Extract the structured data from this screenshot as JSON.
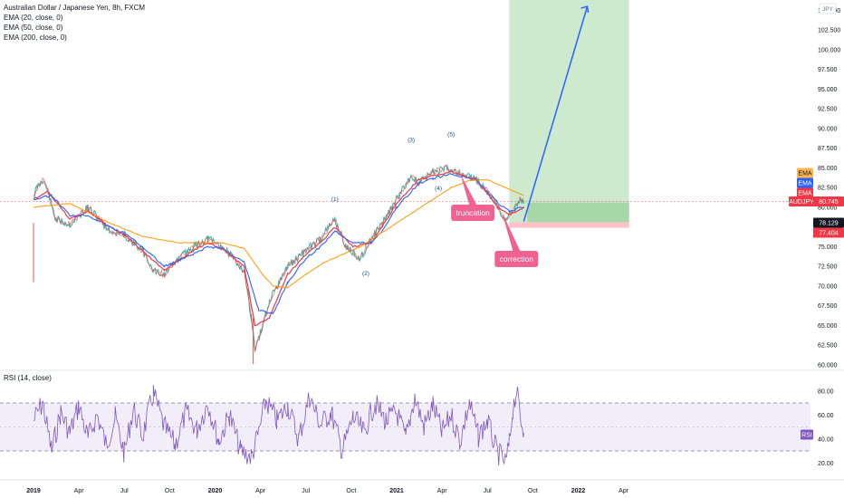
{
  "header": {
    "symbol_title": "Australian Dollar / Japanese Yen, 8h, FXCM",
    "indicators": [
      "EMA (20, close, 0)",
      "EMA (50, close, 0)",
      "EMA (200, close, 0)"
    ]
  },
  "rsi_title": "RSI (14, close)",
  "currency_label": "JPY",
  "chart_data": [
    {
      "type": "line",
      "title": "Australian Dollar / Japanese Yen, 8h, FXCM",
      "x_ticks": [
        "2019",
        "Apr",
        "Jul",
        "Oct",
        "2020",
        "Apr",
        "Jul",
        "Oct",
        "2021",
        "Apr",
        "Jul",
        "Oct",
        "2022",
        "Apr"
      ],
      "y_ticks": [
        "105.000",
        "102.500",
        "100.000",
        "97.500",
        "95.000",
        "92.500",
        "90.000",
        "87.500",
        "85.000",
        "82.500",
        "80.000",
        "77.500",
        "75.000",
        "72.500",
        "70.000",
        "67.500",
        "65.000",
        "62.500",
        "60.000"
      ],
      "ylim": [
        60,
        106
      ],
      "series": [
        {
          "name": "AUDJPY",
          "color": "#26a69a",
          "x": [
            2019.0,
            2019.02,
            2019.05,
            2019.08,
            2019.12,
            2019.2,
            2019.3,
            2019.42,
            2019.5,
            2019.6,
            2019.66,
            2019.72,
            2019.8,
            2019.88,
            2019.96,
            2020.04,
            2020.1,
            2020.16,
            2020.2,
            2020.22,
            2020.25,
            2020.28,
            2020.32,
            2020.4,
            2020.5,
            2020.58,
            2020.66,
            2020.72,
            2020.8,
            2020.86,
            2020.92,
            2021.0,
            2021.08,
            2021.12,
            2021.2,
            2021.28,
            2021.36,
            2021.44,
            2021.5,
            2021.56,
            2021.6,
            2021.64,
            2021.68,
            2021.7
          ],
          "values": [
            81.5,
            82.5,
            83.5,
            82,
            78.5,
            77.8,
            80,
            77,
            76.5,
            74.5,
            72,
            71.5,
            73.5,
            75,
            76,
            75,
            73.5,
            72,
            66,
            62,
            64,
            66.5,
            69,
            72.5,
            74.5,
            76,
            78.5,
            75,
            73.5,
            76,
            78,
            81,
            84,
            83,
            84.5,
            85,
            84.3,
            83.5,
            82,
            80,
            78.3,
            79.5,
            81,
            80.7
          ]
        },
        {
          "name": "EMA 20",
          "color": "#f23645",
          "x": [
            2019.0,
            2019.08,
            2019.2,
            2019.3,
            2019.42,
            2019.5,
            2019.6,
            2019.72,
            2019.88,
            2019.96,
            2020.04,
            2020.16,
            2020.22,
            2020.3,
            2020.4,
            2020.5,
            2020.58,
            2020.66,
            2020.76,
            2020.86,
            2020.92,
            2021.0,
            2021.12,
            2021.2,
            2021.3,
            2021.44,
            2021.56,
            2021.62,
            2021.7
          ],
          "values": [
            81,
            82,
            78.5,
            79.5,
            77.5,
            76.5,
            74.5,
            72,
            74.5,
            75.5,
            74.7,
            72.5,
            65,
            66,
            71.5,
            74,
            75.5,
            77.5,
            75,
            75.5,
            77.5,
            80.5,
            83.5,
            84,
            84.5,
            83.5,
            80,
            79,
            80
          ]
        },
        {
          "name": "EMA 50",
          "color": "#2962ff",
          "x": [
            2019.0,
            2019.1,
            2019.2,
            2019.3,
            2019.42,
            2019.5,
            2019.6,
            2019.72,
            2019.88,
            2019.96,
            2020.04,
            2020.16,
            2020.24,
            2020.32,
            2020.4,
            2020.5,
            2020.58,
            2020.66,
            2020.76,
            2020.86,
            2020.92,
            2021.0,
            2021.12,
            2021.2,
            2021.3,
            2021.44,
            2021.56,
            2021.62,
            2021.7
          ],
          "values": [
            81,
            81.5,
            79,
            79,
            77.5,
            76.7,
            75,
            72.5,
            74,
            75,
            74.8,
            73,
            67,
            66.5,
            70.5,
            73.5,
            75,
            77,
            75.5,
            75.5,
            77,
            80,
            83,
            83.7,
            84.2,
            83.5,
            80.5,
            79.5,
            80
          ]
        },
        {
          "name": "EMA 200",
          "color": "#ff9800",
          "x": [
            2019.0,
            2019.2,
            2019.42,
            2019.6,
            2019.8,
            2020.04,
            2020.16,
            2020.26,
            2020.32,
            2020.4,
            2020.5,
            2020.6,
            2020.7,
            2020.8,
            2020.9,
            2021.0,
            2021.1,
            2021.2,
            2021.3,
            2021.4,
            2021.5,
            2021.6,
            2021.7
          ],
          "values": [
            80,
            80.5,
            78,
            76.3,
            75.5,
            75.5,
            74.8,
            71.5,
            70,
            69.8,
            71.5,
            73,
            74,
            75,
            76.5,
            78,
            79.5,
            81,
            82.5,
            83.4,
            83.5,
            82.5,
            81.5
          ]
        }
      ],
      "labels": {
        "last_price": "80.745",
        "last_symbol": "AUDJPY",
        "ema_tags": [
          "EMA",
          "EMA",
          "EMA"
        ],
        "target_level": "78.129",
        "stop_level": "77.404",
        "wave_labels": [
          {
            "text": "(1)",
            "x": 2020.66,
            "y": 80.8
          },
          {
            "text": "(2)",
            "x": 2020.83,
            "y": 71.4
          },
          {
            "text": "(3)",
            "x": 2021.08,
            "y": 88.3
          },
          {
            "text": "(4)",
            "x": 2021.23,
            "y": 82.2
          },
          {
            "text": "(5)",
            "x": 2021.3,
            "y": 89.0
          }
        ],
        "callouts": [
          {
            "text": "truncation",
            "x": 2021.31,
            "y": 83.8
          },
          {
            "text": "correction",
            "x": 2021.6,
            "y": 78.4
          }
        ]
      },
      "position": {
        "entry": 78.129,
        "stop": 77.404,
        "target": 106,
        "x_start": 2021.62,
        "x_end": 2022.28
      }
    },
    {
      "type": "line",
      "title": "RSI (14, close)",
      "y_ticks": [
        "80.00",
        "60.00",
        "40.00",
        "20.00"
      ],
      "ylim": [
        7,
        95
      ],
      "band": [
        30,
        70
      ],
      "midline": 50,
      "series": [
        {
          "name": "RSI",
          "color": "#7e57c2",
          "x": [
            2019.0,
            2019.05,
            2019.1,
            2019.15,
            2019.2,
            2019.25,
            2019.3,
            2019.35,
            2019.4,
            2019.45,
            2019.5,
            2019.55,
            2019.6,
            2019.66,
            2019.72,
            2019.78,
            2019.84,
            2019.9,
            2019.96,
            2020.02,
            2020.08,
            2020.14,
            2020.2,
            2020.24,
            2020.28,
            2020.34,
            2020.4,
            2020.46,
            2020.52,
            2020.58,
            2020.64,
            2020.7,
            2020.76,
            2020.82,
            2020.88,
            2020.94,
            2021.0,
            2021.05,
            2021.1,
            2021.15,
            2021.2,
            2021.25,
            2021.3,
            2021.35,
            2021.4,
            2021.45,
            2021.5,
            2021.55,
            2021.6,
            2021.62,
            2021.64,
            2021.66,
            2021.68,
            2021.7
          ],
          "values": [
            55,
            70,
            30,
            62,
            45,
            68,
            40,
            60,
            35,
            58,
            28,
            65,
            42,
            78,
            50,
            35,
            62,
            48,
            70,
            38,
            60,
            30,
            25,
            45,
            72,
            55,
            68,
            40,
            75,
            52,
            62,
            30,
            58,
            45,
            70,
            55,
            62,
            40,
            75,
            50,
            68,
            45,
            60,
            38,
            70,
            42,
            55,
            30,
            20,
            35,
            65,
            80,
            60,
            45
          ]
        }
      ],
      "value_label": "RSI"
    }
  ]
}
